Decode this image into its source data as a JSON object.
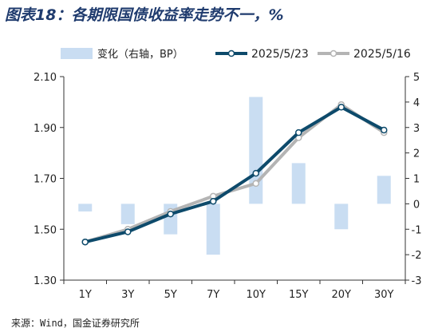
{
  "title": "图表18：各期限国债收益率走势不一，%",
  "source": "来源：Wind，国金证券研究所",
  "chart_data": {
    "type": "bar",
    "categories": [
      "1Y",
      "3Y",
      "5Y",
      "7Y",
      "10Y",
      "15Y",
      "20Y",
      "30Y"
    ],
    "series": [
      {
        "name": "变化（右轴，BP）",
        "type": "bar",
        "axis": "right",
        "color": "#c9ddf2",
        "values": [
          -0.3,
          -0.8,
          -1.2,
          -2.0,
          4.2,
          1.6,
          -1.0,
          1.1
        ]
      },
      {
        "name": "2025/5/23",
        "type": "line",
        "axis": "left",
        "color": "#0d4a6b",
        "values": [
          1.45,
          1.49,
          1.56,
          1.61,
          1.72,
          1.88,
          1.98,
          1.89
        ]
      },
      {
        "name": "2025/5/16",
        "type": "line",
        "axis": "left",
        "color": "#b4b4b4",
        "values": [
          1.45,
          1.5,
          1.57,
          1.63,
          1.68,
          1.86,
          1.99,
          1.88
        ]
      }
    ],
    "y_left": {
      "range": [
        1.3,
        2.1
      ],
      "ticks": [
        "1.30",
        "1.50",
        "1.70",
        "1.90",
        "2.10"
      ]
    },
    "y_right": {
      "range": [
        -3,
        5
      ],
      "ticks": [
        "-3",
        "-2",
        "-1",
        "0",
        "1",
        "2",
        "3",
        "4",
        "5"
      ]
    },
    "grid": false,
    "legend_position": "top"
  }
}
